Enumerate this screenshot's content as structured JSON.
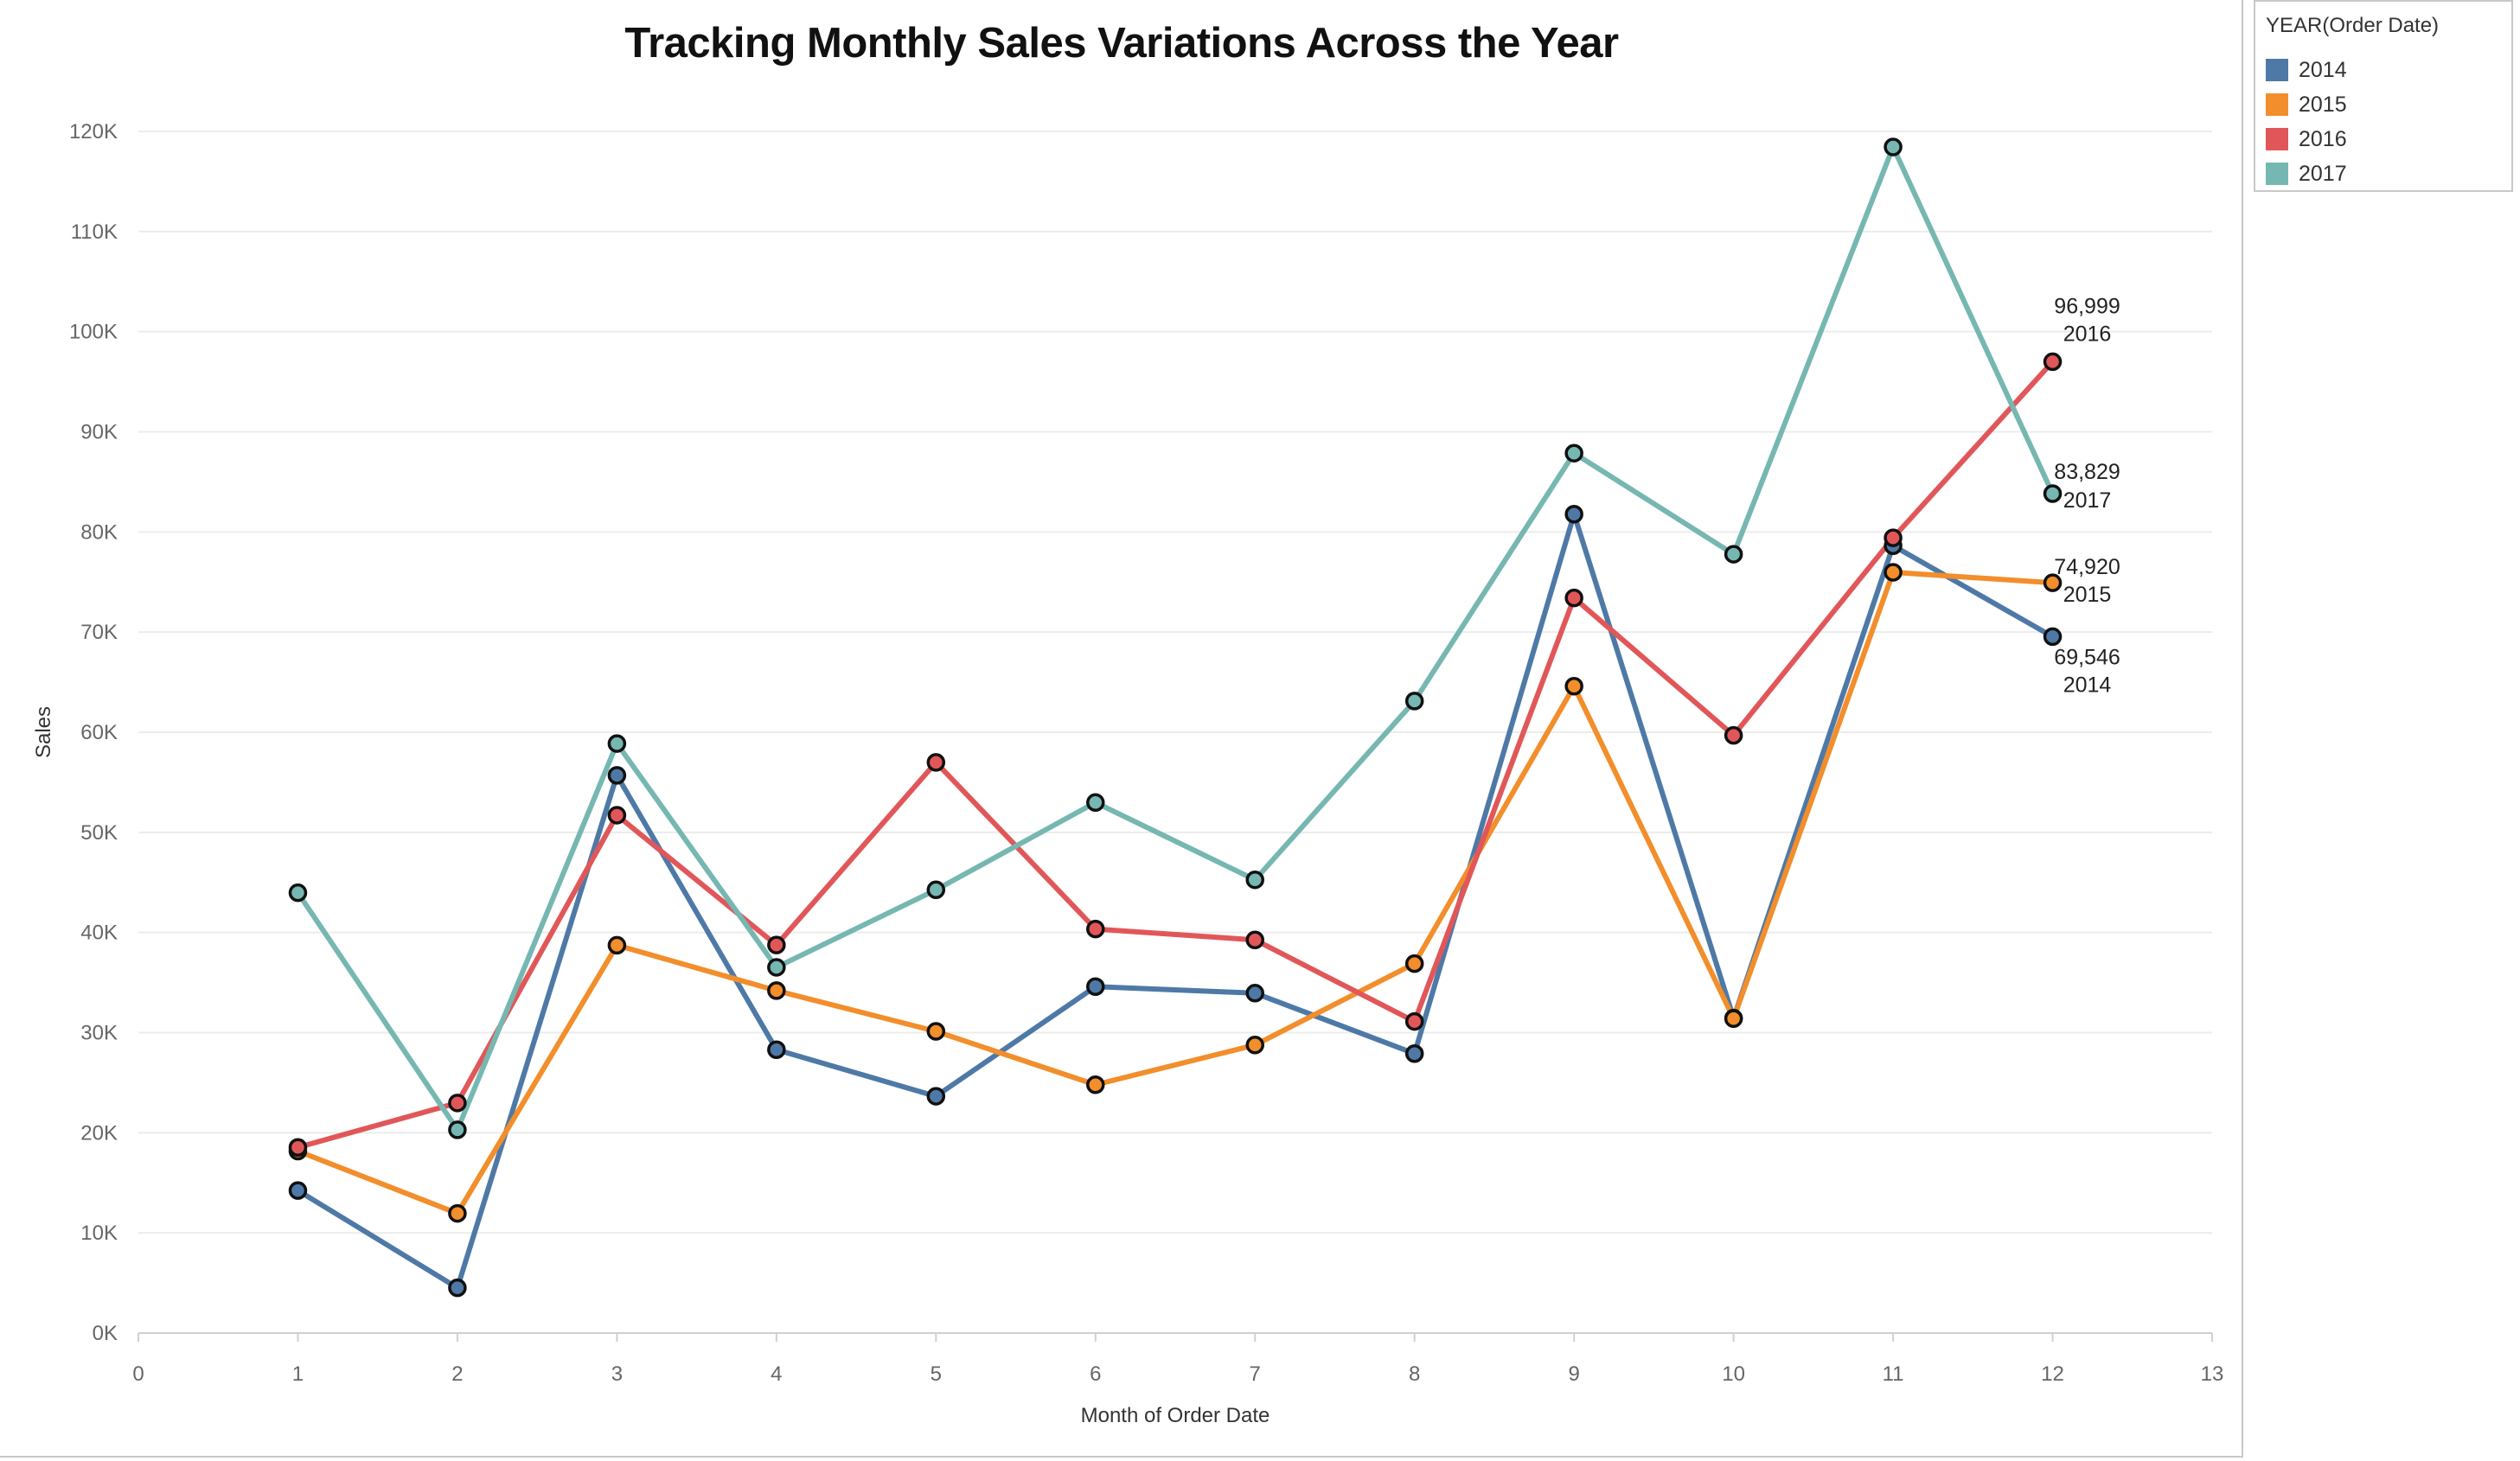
{
  "chart_data": {
    "type": "line",
    "title": "Tracking Monthly Sales Variations Across the Year",
    "xlabel": "Month of Order Date",
    "ylabel": "Sales",
    "xlim": [
      0,
      13
    ],
    "ylim": [
      0,
      120000
    ],
    "x_ticks": [
      "0",
      "1",
      "2",
      "3",
      "4",
      "5",
      "6",
      "7",
      "8",
      "9",
      "10",
      "11",
      "12",
      "13"
    ],
    "y_ticks": [
      "0K",
      "10K",
      "20K",
      "30K",
      "40K",
      "50K",
      "60K",
      "70K",
      "80K",
      "90K",
      "100K",
      "110K",
      "120K"
    ],
    "grid": "horizontal",
    "legend_position": "right",
    "legend_title": "YEAR(Order Date)",
    "x": [
      1,
      2,
      3,
      4,
      5,
      6,
      7,
      8,
      9,
      10,
      11,
      12
    ],
    "series": [
      {
        "name": "2014",
        "color": "#4e79a7",
        "values": [
          14237,
          4520,
          55691,
          28295,
          23648,
          34595,
          33946,
          27909,
          81777,
          31453,
          78629,
          69546
        ]
      },
      {
        "name": "2015",
        "color": "#f28e2b",
        "values": [
          18174,
          11951,
          38726,
          34195,
          30132,
          24797,
          28765,
          36898,
          64596,
          31405,
          75973,
          74920
        ]
      },
      {
        "name": "2016",
        "color": "#e15759",
        "values": [
          18542,
          22979,
          51716,
          38750,
          56988,
          40345,
          39262,
          31115,
          73410,
          59688,
          79412,
          96999
        ]
      },
      {
        "name": "2017",
        "color": "#76b7b2",
        "values": [
          43971,
          20301,
          58872,
          36522,
          44261,
          52982,
          45264,
          63121,
          87867,
          77777,
          118448,
          83829
        ]
      }
    ],
    "end_labels": [
      {
        "value": "96,999",
        "series": "2016"
      },
      {
        "value": "83,829",
        "series": "2017"
      },
      {
        "value": "74,920",
        "series": "2015"
      },
      {
        "value": "69,546",
        "series": "2014"
      }
    ]
  }
}
